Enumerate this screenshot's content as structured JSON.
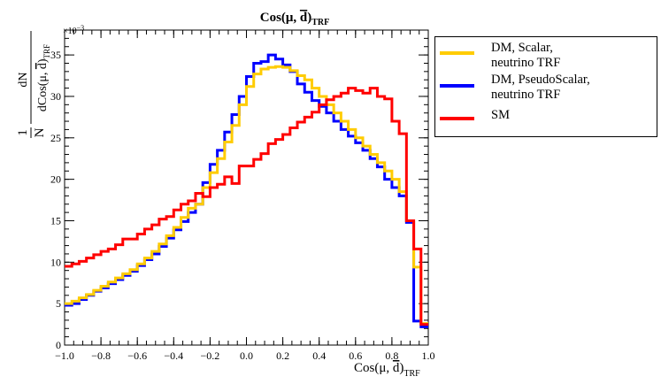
{
  "chart_data": {
    "type": "step-histogram",
    "title": "Cos(μ, d̄)TRF",
    "title_main": "Cos(μ, ",
    "title_bar": "d",
    "title_close": ")",
    "title_sub": "TRF",
    "xlabel_main": "Cos(μ, ",
    "xlabel_bar": "d",
    "xlabel_close": ")",
    "xlabel_sub": "TRF",
    "ylabel_frac_left": "1",
    "ylabel_frac_left_den": "N",
    "ylabel_num": "dN",
    "ylabel_den_main": "dCos(μ, ",
    "ylabel_den_bar": "d",
    "ylabel_den_close": ")",
    "ylabel_den_sub": "TRF",
    "y_multiplier": "×10",
    "y_multiplier_exp": "−3",
    "xlim": [
      -1.0,
      1.0
    ],
    "ylim": [
      0,
      38
    ],
    "x_ticks": [
      "−1.0",
      "−0.8",
      "−0.6",
      "−0.4",
      "−0.2",
      "0.0",
      "0.2",
      "0.4",
      "0.6",
      "0.8",
      "1.0"
    ],
    "x_tick_values": [
      -1.0,
      -0.8,
      -0.6,
      -0.4,
      -0.2,
      0.0,
      0.2,
      0.4,
      0.6,
      0.8,
      1.0
    ],
    "y_ticks": [
      "0",
      "5",
      "10",
      "15",
      "20",
      "25",
      "30",
      "35"
    ],
    "y_tick_values": [
      0,
      5,
      10,
      15,
      20,
      25,
      30,
      35
    ],
    "bin_edges_range": [
      -1.0,
      1.0
    ],
    "n_bins": 50,
    "series": [
      {
        "name": "DM, PseudoScalar, neutrino TRF",
        "color": "#0000ff",
        "values": [
          4.8,
          5.0,
          5.5,
          6.0,
          6.5,
          6.9,
          7.4,
          7.9,
          8.4,
          8.9,
          9.6,
          10.3,
          11.0,
          11.9,
          12.9,
          13.9,
          14.9,
          16.0,
          17.0,
          19.6,
          21.8,
          23.5,
          25.7,
          27.8,
          30.0,
          32.4,
          34.0,
          34.2,
          35.0,
          34.5,
          33.8,
          33.0,
          31.5,
          30.5,
          29.5,
          28.8,
          28.0,
          27.0,
          26.0,
          25.2,
          24.4,
          23.5,
          22.5,
          21.5,
          20.0,
          19.0,
          18.0,
          14.8,
          2.9,
          2.2
        ]
      },
      {
        "name": "DM, Scalar, neutrino TRF",
        "color": "#ffcc00",
        "values": [
          5.0,
          5.3,
          5.7,
          6.1,
          6.6,
          7.1,
          7.6,
          8.1,
          8.6,
          9.1,
          9.8,
          10.5,
          11.3,
          12.2,
          13.2,
          14.2,
          15.4,
          16.5,
          17.0,
          19.0,
          20.8,
          22.5,
          24.5,
          26.5,
          29.0,
          31.2,
          32.7,
          33.3,
          33.5,
          33.6,
          33.5,
          33.1,
          32.5,
          32.0,
          31.0,
          30.0,
          29.0,
          28.0,
          27.0,
          26.0,
          25.0,
          24.0,
          23.0,
          22.0,
          21.0,
          20.0,
          18.5,
          15.0,
          9.4,
          2.6
        ]
      },
      {
        "name": "SM",
        "color": "#ff0000",
        "values": [
          9.5,
          9.8,
          10.1,
          10.5,
          10.9,
          11.3,
          11.6,
          12.1,
          12.8,
          12.8,
          13.4,
          14.0,
          14.5,
          15.2,
          15.5,
          16.3,
          17.0,
          17.4,
          18.3,
          17.9,
          19.0,
          19.4,
          20.3,
          19.5,
          21.6,
          21.6,
          22.4,
          23.1,
          24.3,
          24.8,
          25.4,
          26.2,
          26.9,
          27.5,
          28.1,
          29.0,
          29.6,
          30.0,
          30.4,
          31.0,
          30.7,
          30.4,
          31.0,
          30.0,
          29.7,
          27.0,
          25.5,
          15.0,
          11.6,
          2.5
        ]
      }
    ]
  },
  "legend": {
    "entries": [
      {
        "line1": "DM, Scalar,",
        "line2": "neutrino TRF",
        "color": "#ffcc00"
      },
      {
        "line1": "DM, PseudoScalar,",
        "line2": "neutrino TRF",
        "color": "#0000ff"
      },
      {
        "line1": "SM",
        "line2": "",
        "color": "#ff0000"
      }
    ]
  }
}
